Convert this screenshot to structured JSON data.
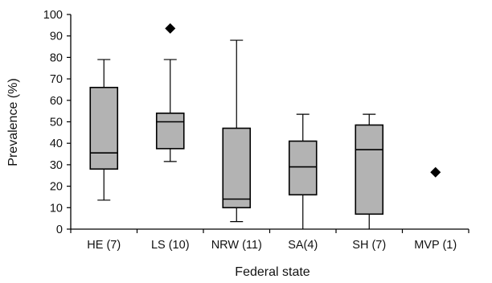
{
  "chart_data": {
    "type": "box",
    "xlabel": "Federal state",
    "ylabel": "Prevalence (%)",
    "ylim": [
      0,
      100
    ],
    "yticks": [
      0,
      10,
      20,
      30,
      40,
      50,
      60,
      70,
      80,
      90,
      100
    ],
    "grid": false,
    "legend": "none",
    "colors": {
      "box_fill": "#b3b3b3",
      "stroke": "#000000",
      "outlier": "#000000"
    },
    "categories": [
      "HE (7)",
      "LS (10)",
      "NRW (11)",
      "SA(4)",
      "SH (7)",
      "MVP (1)"
    ],
    "boxes": [
      {
        "category": "HE (7)",
        "min": 13.5,
        "q1": 28,
        "median": 35.5,
        "q3": 66,
        "max": 79,
        "outliers": []
      },
      {
        "category": "LS (10)",
        "min": 31.5,
        "q1": 37.5,
        "median": 50,
        "q3": 54,
        "max": 79,
        "outliers": [
          93.5
        ]
      },
      {
        "category": "NRW (11)",
        "min": 3.5,
        "q1": 10,
        "median": 14,
        "q3": 47,
        "max": 88,
        "outliers": []
      },
      {
        "category": "SA(4)",
        "min": 0,
        "q1": 16,
        "median": 29,
        "q3": 41,
        "max": 53.5,
        "outliers": []
      },
      {
        "category": "SH (7)",
        "min": 0,
        "q1": 7,
        "median": 37,
        "q3": 48.5,
        "max": 53.5,
        "outliers": []
      },
      {
        "category": "MVP (1)",
        "min": null,
        "q1": null,
        "median": null,
        "q3": null,
        "max": null,
        "outliers": [
          26.5
        ]
      }
    ]
  }
}
